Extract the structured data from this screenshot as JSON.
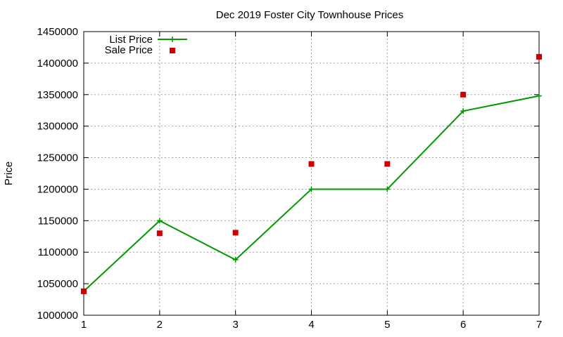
{
  "chart_data": {
    "type": "line",
    "title": "Dec 2019 Foster City Townhouse Prices",
    "xlabel": "",
    "ylabel": "Price",
    "x": [
      1,
      2,
      3,
      4,
      5,
      6,
      7
    ],
    "xlim": [
      1,
      7
    ],
    "ylim": [
      1000000,
      1450000
    ],
    "xticks": [
      "1",
      "2",
      "3",
      "4",
      "5",
      "6",
      "7"
    ],
    "yticks": [
      "1000000",
      "1050000",
      "1100000",
      "1150000",
      "1200000",
      "1250000",
      "1300000",
      "1350000",
      "1400000",
      "1450000"
    ],
    "grid": true,
    "legend_position": "top-left",
    "series": [
      {
        "name": "List Price",
        "style": "line-with-plus-markers",
        "color": "#009900",
        "values": [
          1038000,
          1150000,
          1088000,
          1200000,
          1200000,
          1324000,
          1348000
        ]
      },
      {
        "name": "Sale Price",
        "style": "square-markers",
        "color": "#cc0000",
        "values": [
          1038000,
          1130000,
          1131000,
          1240000,
          1240000,
          1350000,
          1410000
        ]
      }
    ]
  }
}
